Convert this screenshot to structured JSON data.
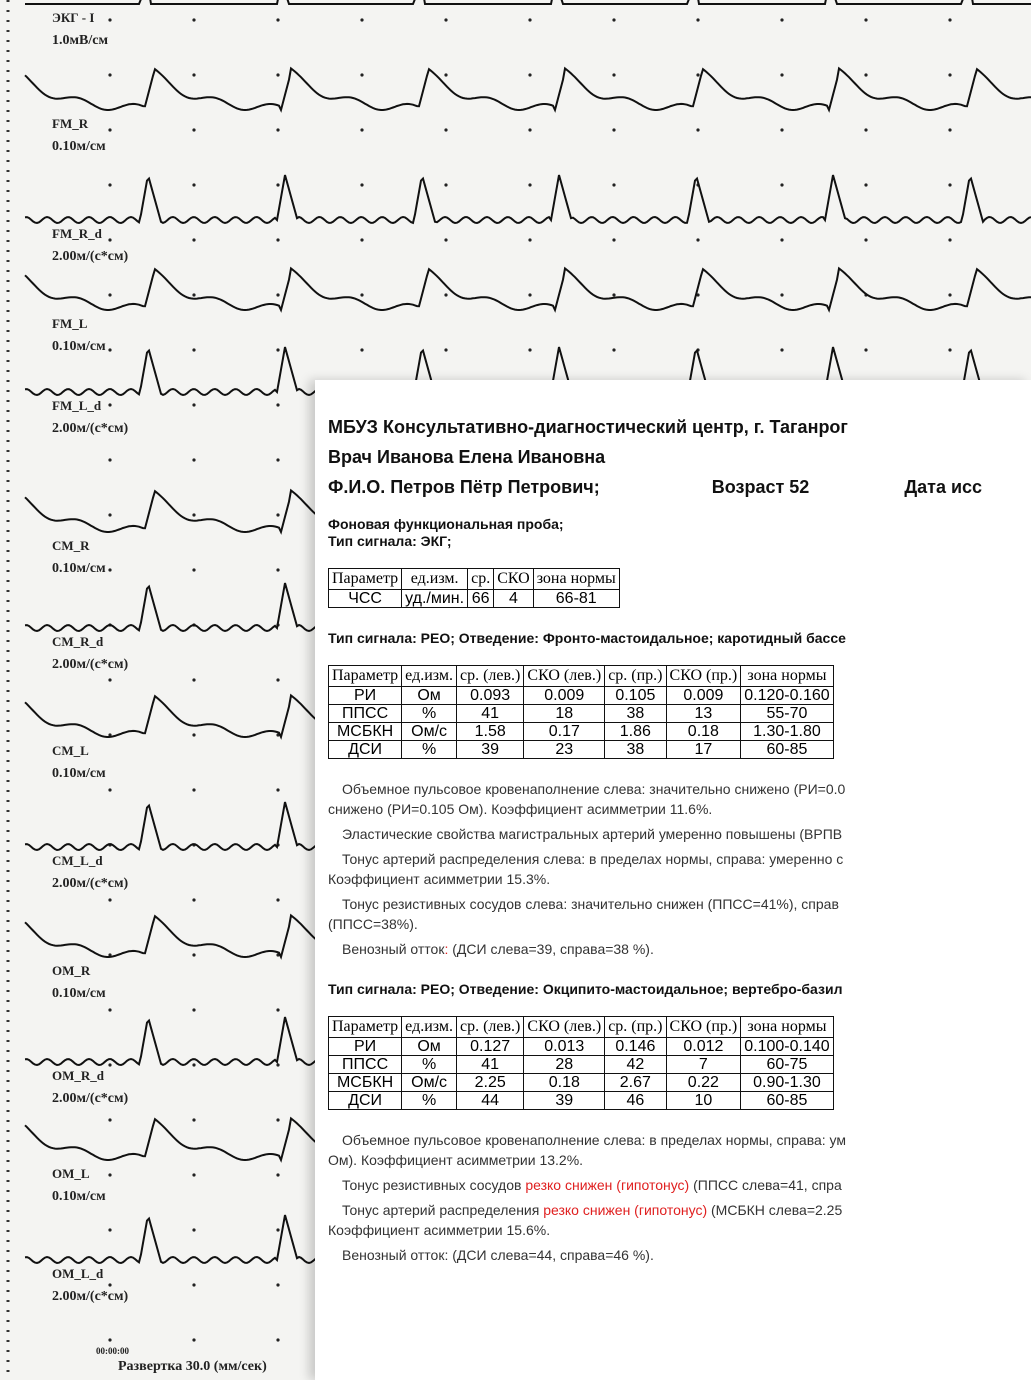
{
  "traces": {
    "channels": [
      {
        "name": "ЭКГ - I",
        "scale": "1.0мВ/см"
      },
      {
        "name": "FM_R",
        "scale": "0.10м/см"
      },
      {
        "name": "FM_R_d",
        "scale": "2.00м/(с*см)"
      },
      {
        "name": "FM_L",
        "scale": "0.10м/см"
      },
      {
        "name": "FM_L_d",
        "scale": "2.00м/(с*см)"
      },
      {
        "name": "CM_R",
        "scale": "0.10м/см"
      },
      {
        "name": "CM_R_d",
        "scale": "2.00м/(с*см)"
      },
      {
        "name": "CM_L",
        "scale": "0.10м/см"
      },
      {
        "name": "CM_L_d",
        "scale": "2.00м/(с*см)"
      },
      {
        "name": "OM_R",
        "scale": "0.10м/см"
      },
      {
        "name": "OM_R_d",
        "scale": "2.00м/(с*см)"
      },
      {
        "name": "OM_L",
        "scale": "0.10м/см"
      },
      {
        "name": "OM_L_d",
        "scale": "2.00м/(с*см)"
      }
    ],
    "time": "00:00:00",
    "sweep": "Развертка 30.0 (мм/сек)"
  },
  "report": {
    "institution": "МБУЗ Консультативно-диагностический центр, г. Таганрог",
    "doctor": "Врач Иванова Елена Ивановна",
    "patient": "Ф.И.О. Петров Пётр Петрович;",
    "age": "Возраст 52",
    "date": "Дата исс",
    "test": "Фоновая функциональная проба;",
    "sections": [
      {
        "title": "Тип сигнала: ЭКГ;",
        "table": {
          "header": [
            "Параметр",
            "ед.изм.",
            "ср.",
            "СКО",
            "зона нормы"
          ],
          "rows": [
            [
              "ЧСС",
              "уд./мин.",
              "66",
              "4",
              "66-81"
            ]
          ]
        },
        "paragraphs": []
      },
      {
        "title": "Тип сигнала: РЕО; Отведение: Фронто-мастоидальное; каротидный бассе",
        "table": {
          "header": [
            "Параметр",
            "ед.изм.",
            "ср. (лев.)",
            "СКО (лев.)",
            "ср. (пр.)",
            "СКО (пр.)",
            "зона нормы"
          ],
          "rows": [
            [
              "РИ",
              "Ом",
              "0.093",
              "0.009",
              "0.105",
              "0.009",
              "0.120-0.160"
            ],
            [
              "ППСС",
              "%",
              "41",
              "18",
              "38",
              "13",
              "55-70"
            ],
            [
              "МСБКН",
              "Ом/с",
              "1.58",
              "0.17",
              "1.86",
              "0.18",
              "1.30-1.80"
            ],
            [
              "ДСИ",
              "%",
              "39",
              "23",
              "38",
              "17",
              "60-85"
            ]
          ]
        },
        "paragraphs": [
          [
            [
              {
                "text": "Объемное пульсовое кровенаполнение слева: значительно снижено (РИ=0.0"
              }
            ],
            [
              {
                "text": "снижено (РИ=0.105 Ом). Коэффициент асимметрии 11.6%."
              }
            ]
          ],
          [
            [
              {
                "text": "Эластические свойства магистральных артерий умеренно повышены (ВРПВ"
              }
            ]
          ],
          [
            [
              {
                "text": "Тонус артерий распределения слева: в пределах нормы, справа: умеренно с"
              }
            ],
            [
              {
                "text": "Коэффициент асимметрии 15.3%."
              }
            ]
          ],
          [
            [
              {
                "text": "Тонус резистивных сосудов слева: значительно снижен (ППСС=41%), справ"
              }
            ],
            [
              {
                "text": "(ППСС=38%)."
              }
            ]
          ],
          [
            [
              {
                "text": "Венозный отток"
              },
              {
                "text": ":",
                "color": "#e02020"
              },
              {
                "text": " (ДСИ слева=39, справа=38 %)."
              }
            ]
          ]
        ]
      },
      {
        "title": "Тип сигнала: РЕО; Отведение: Окципито-мастоидальное; вертебро-базил",
        "table": {
          "header": [
            "Параметр",
            "ед.изм.",
            "ср. (лев.)",
            "СКО (лев.)",
            "ср. (пр.)",
            "СКО (пр.)",
            "зона нормы"
          ],
          "rows": [
            [
              "РИ",
              "Ом",
              "0.127",
              "0.013",
              "0.146",
              "0.012",
              "0.100-0.140"
            ],
            [
              "ППСС",
              "%",
              "41",
              "28",
              "42",
              "7",
              "60-75"
            ],
            [
              "МСБКН",
              "Ом/с",
              "2.25",
              "0.18",
              "2.67",
              "0.22",
              "0.90-1.30"
            ],
            [
              "ДСИ",
              "%",
              "44",
              "39",
              "46",
              "10",
              "60-85"
            ]
          ]
        },
        "paragraphs": [
          [
            [
              {
                "text": "Объемное пульсовое кровенаполнение слева: в пределах нормы, справа: ум"
              }
            ],
            [
              {
                "text": "Ом). Коэффициент асимметрии 13.2%."
              }
            ]
          ],
          [
            [
              {
                "text": "Тонус резистивных сосудов "
              },
              {
                "text": "резко снижен (гипотонус)",
                "color": "#e02020"
              },
              {
                "text": " (ППСС слева=41, спра"
              }
            ]
          ],
          [
            [
              {
                "text": "Тонус артерий распределения "
              },
              {
                "text": "резко снижен (гипотонус)",
                "color": "#e02020"
              },
              {
                "text": " (МСБКН слева=2.25"
              }
            ],
            [
              {
                "text": "Коэффициент асимметрии 15.6%."
              }
            ]
          ],
          [
            [
              {
                "text": "Венозный отток: (ДСИ слева=44, справа=46 %)."
              }
            ]
          ]
        ]
      }
    ]
  }
}
